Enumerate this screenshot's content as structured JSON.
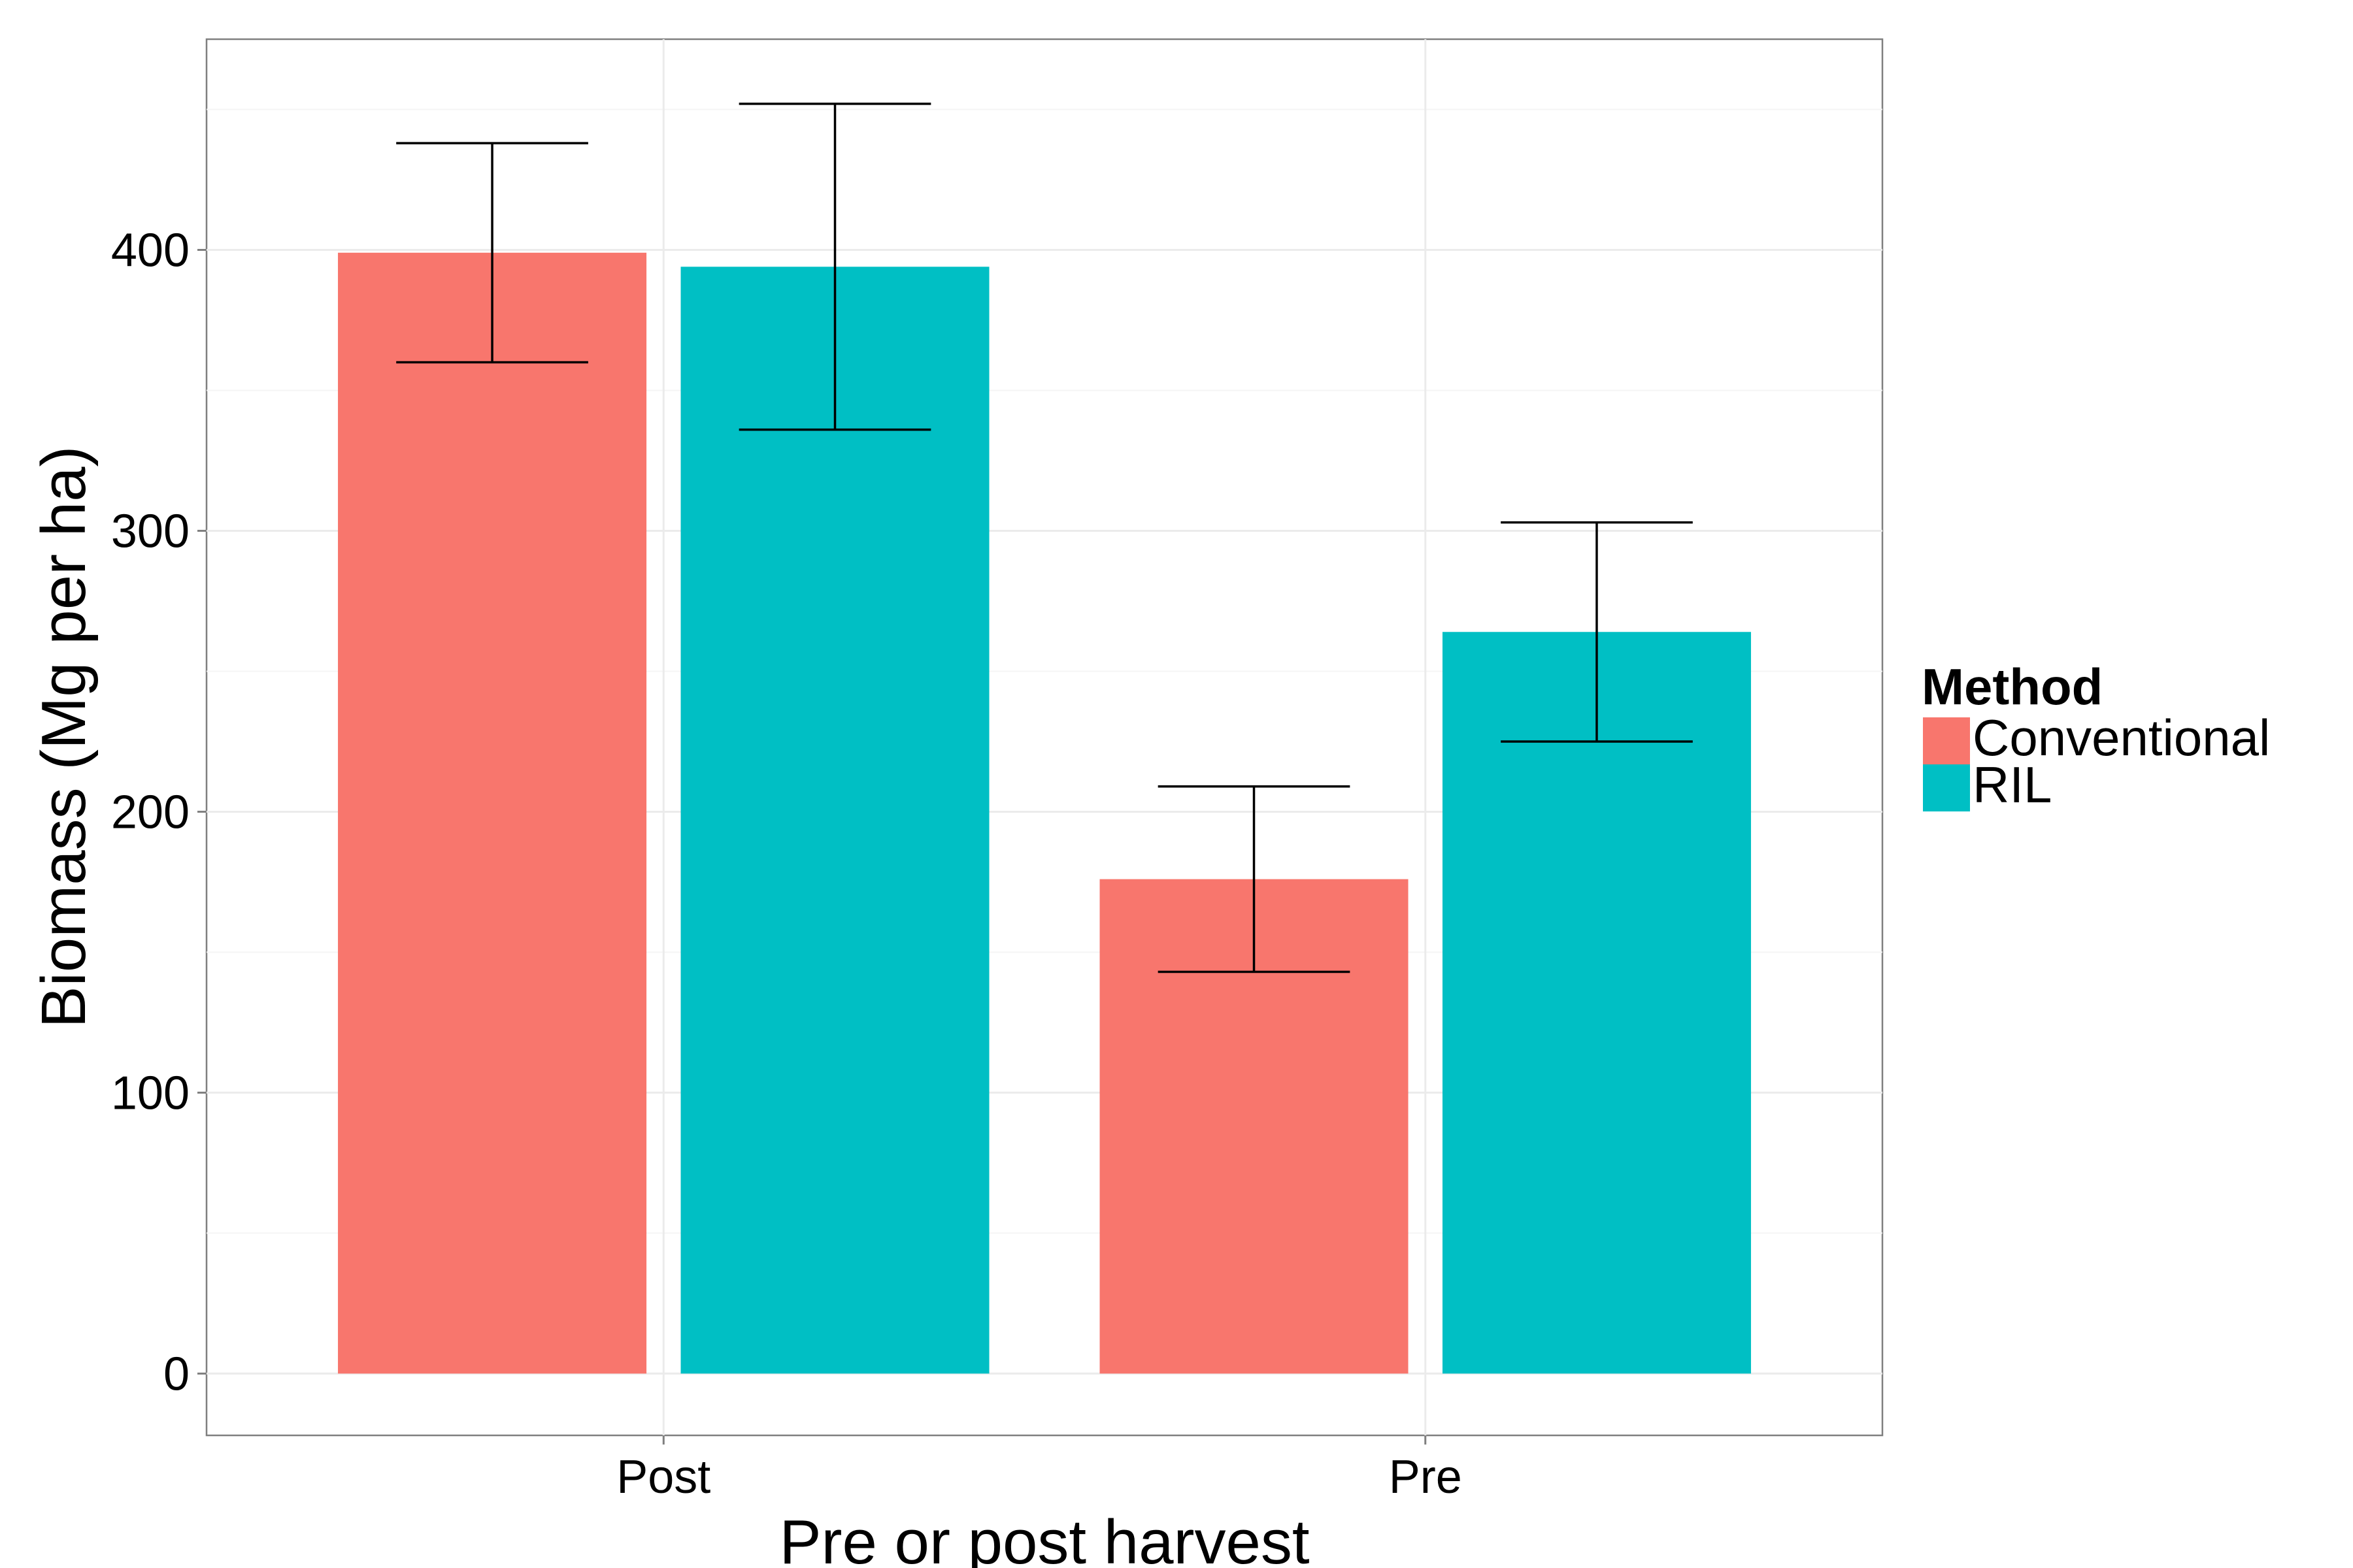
{
  "chart_data": {
    "type": "bar",
    "categories": [
      "Post",
      "Pre"
    ],
    "series": [
      {
        "name": "Conventional",
        "color": "#F8766D",
        "values": [
          399,
          176
        ],
        "error_low": [
          360,
          143
        ],
        "error_high": [
          438,
          209
        ]
      },
      {
        "name": "RIL",
        "color": "#00BFC4",
        "values": [
          394,
          264
        ],
        "error_low": [
          336,
          225
        ],
        "error_high": [
          452,
          303
        ]
      }
    ],
    "title": "",
    "xlabel": "Pre or post harvest",
    "ylabel": "Biomass (Mg per ha)",
    "ylim": [
      -22,
      475
    ],
    "yticks": [
      0,
      100,
      200,
      300,
      400
    ],
    "ytick_labels": [
      "0",
      "100",
      "200",
      "300",
      "400"
    ],
    "grid": true,
    "legend": {
      "title": "Method",
      "position": "right",
      "items": [
        "Conventional",
        "RIL"
      ]
    }
  }
}
